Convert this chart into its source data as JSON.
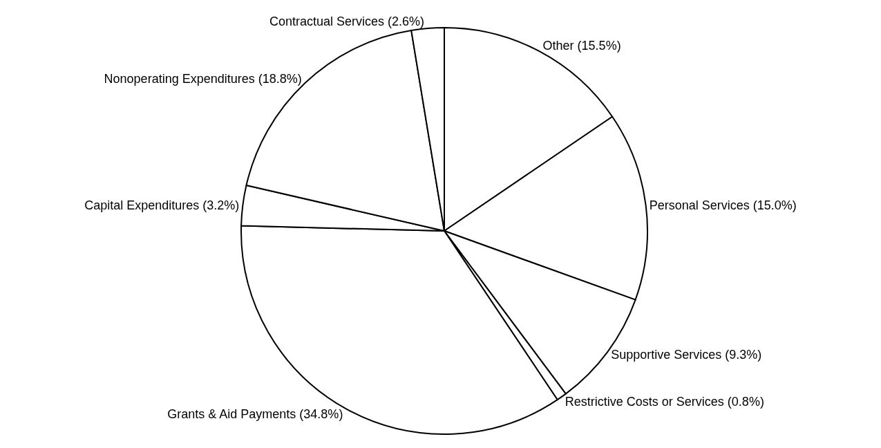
{
  "chart_data": {
    "type": "pie",
    "categories": [
      "Other (15.5%)",
      "Personal Services (15.0%)",
      "Supportive Services (9.3%)",
      "Restrictive Costs or Services (0.8%)",
      "Grants & Aid Payments (34.8%)",
      "Capital Expenditures (3.2%)",
      "Nonoperating Expenditures (18.8%)",
      "Contractual Services (2.6%)"
    ],
    "values": [
      15.5,
      15.0,
      9.3,
      0.8,
      34.8,
      3.2,
      18.8,
      2.6
    ],
    "colors": [
      "#ffffff",
      "#ffffff",
      "#ffffff",
      "#ffffff",
      "#ffffff",
      "#ffffff",
      "#ffffff",
      "#ffffff"
    ],
    "legend": false
  }
}
